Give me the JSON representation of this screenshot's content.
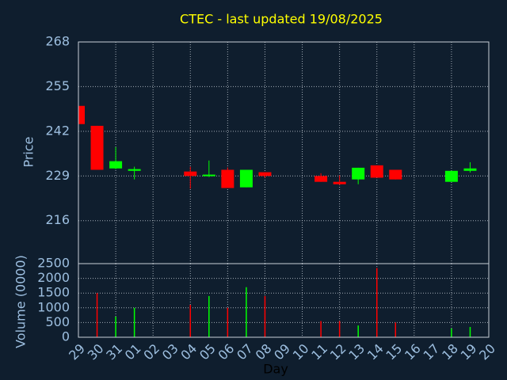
{
  "chart_data": [
    {
      "type": "candlestick",
      "title": "CTEC - last updated 19/08/2025",
      "ylabel": "Price",
      "up_color": "#00ff00",
      "down_color": "#ff0000",
      "grid": true,
      "open": [
        249.4,
        243.6,
        231.2,
        230.5,
        null,
        null,
        230.3,
        229.0,
        230.8,
        225.7,
        230.1,
        null,
        null,
        229.0,
        227.3,
        228.0,
        232.1,
        230.8,
        null,
        null,
        227.3,
        230.5,
        null
      ],
      "high": [
        249.4,
        243.6,
        237.4,
        231.7,
        null,
        null,
        231.7,
        233.5,
        231.5,
        230.8,
        230.1,
        null,
        null,
        229.8,
        229.2,
        231.4,
        232.1,
        230.8,
        null,
        null,
        230.5,
        233.0,
        null
      ],
      "low": [
        244.1,
        230.8,
        231.0,
        228.0,
        null,
        null,
        225.3,
        228.7,
        225.5,
        225.7,
        228.5,
        null,
        null,
        227.3,
        226.4,
        226.6,
        228.5,
        228.0,
        null,
        null,
        227.3,
        230.0,
        null
      ],
      "close": [
        244.1,
        230.8,
        233.3,
        231.0,
        null,
        null,
        229.0,
        229.4,
        225.5,
        230.8,
        229.0,
        null,
        null,
        227.3,
        226.6,
        231.4,
        228.5,
        228.0,
        null,
        null,
        230.5,
        231.2,
        null
      ],
      "ylim": [
        203.5,
        268
      ],
      "yticks": [
        216,
        229,
        242,
        255,
        268
      ]
    },
    {
      "type": "bar",
      "ylabel": "Volume (0000)",
      "xlabel": "Day",
      "categories": [
        "29",
        "30",
        "31",
        "01",
        "02",
        "03",
        "04",
        "05",
        "06",
        "07",
        "08",
        "09",
        "10",
        "11",
        "12",
        "13",
        "14",
        "15",
        "16",
        "17",
        "18",
        "19",
        "20"
      ],
      "values": [
        null,
        1500,
        700,
        1000,
        null,
        null,
        1100,
        1400,
        1000,
        1700,
        1400,
        null,
        null,
        550,
        550,
        400,
        2350,
        500,
        null,
        null,
        300,
        350,
        null
      ],
      "ylim": [
        0,
        2500
      ],
      "yticks": [
        0,
        500,
        1000,
        1500,
        2000,
        2500
      ],
      "grid": true
    }
  ]
}
